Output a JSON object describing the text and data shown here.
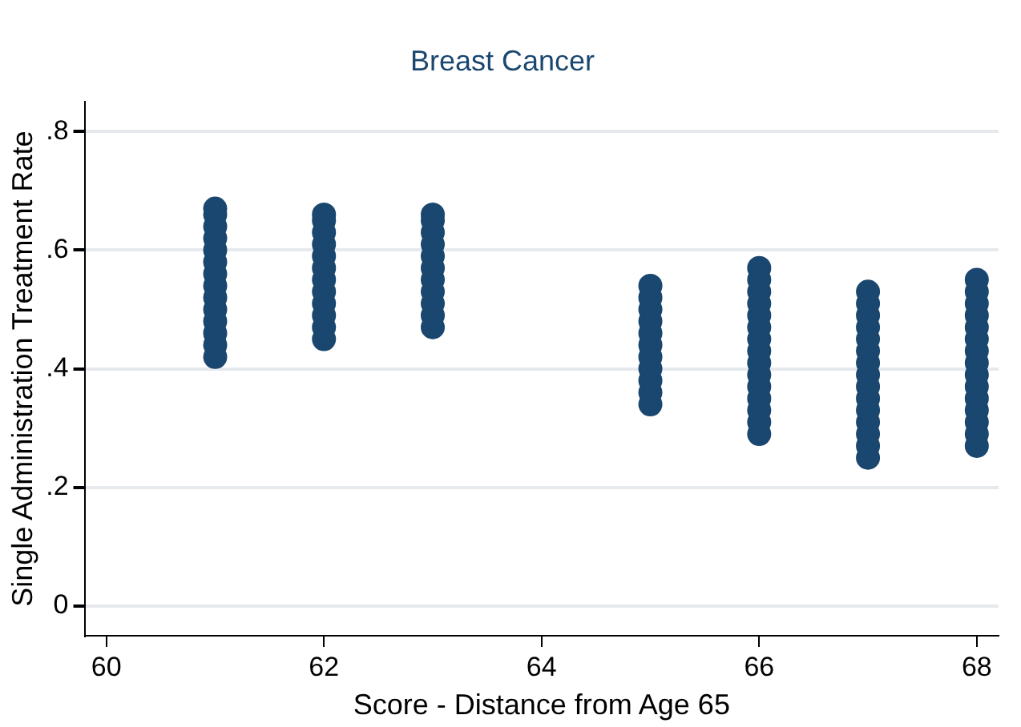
{
  "chart_data": {
    "type": "scatter",
    "title": "Breast Cancer",
    "xlabel": "Score - Distance from Age 65",
    "ylabel": "Single Administration Treatment Rate",
    "x": [
      61,
      61,
      61,
      61,
      61,
      61,
      61,
      61,
      61,
      61,
      61,
      61,
      61,
      61,
      62,
      62,
      62,
      62,
      62,
      62,
      62,
      62,
      62,
      62,
      62,
      62,
      63,
      63,
      63,
      63,
      63,
      63,
      63,
      63,
      63,
      63,
      63,
      65,
      65,
      65,
      65,
      65,
      65,
      65,
      65,
      65,
      65,
      65,
      66,
      66,
      66,
      66,
      66,
      66,
      66,
      66,
      66,
      66,
      66,
      66,
      66,
      66,
      66,
      67,
      67,
      67,
      67,
      67,
      67,
      67,
      67,
      67,
      67,
      67,
      67,
      67,
      67,
      67,
      68,
      68,
      68,
      68,
      68,
      68,
      68,
      68,
      68,
      68,
      68,
      68,
      68,
      68,
      68
    ],
    "values": [
      0.42,
      0.44,
      0.46,
      0.48,
      0.5,
      0.52,
      0.54,
      0.56,
      0.58,
      0.6,
      0.62,
      0.64,
      0.66,
      0.67,
      0.45,
      0.47,
      0.49,
      0.51,
      0.53,
      0.55,
      0.57,
      0.59,
      0.61,
      0.63,
      0.65,
      0.66,
      0.47,
      0.49,
      0.51,
      0.53,
      0.55,
      0.57,
      0.59,
      0.61,
      0.63,
      0.65,
      0.66,
      0.34,
      0.36,
      0.38,
      0.4,
      0.42,
      0.44,
      0.46,
      0.48,
      0.5,
      0.52,
      0.54,
      0.29,
      0.31,
      0.33,
      0.35,
      0.37,
      0.39,
      0.41,
      0.43,
      0.45,
      0.47,
      0.49,
      0.51,
      0.53,
      0.55,
      0.57,
      0.25,
      0.27,
      0.29,
      0.31,
      0.33,
      0.35,
      0.37,
      0.39,
      0.41,
      0.43,
      0.45,
      0.47,
      0.49,
      0.51,
      0.53,
      0.27,
      0.29,
      0.31,
      0.33,
      0.35,
      0.37,
      0.39,
      0.41,
      0.43,
      0.45,
      0.47,
      0.49,
      0.51,
      0.53,
      0.55
    ],
    "color": "#1a476f",
    "marker": "circle",
    "xlim": [
      59.8,
      68.2
    ],
    "xticks": [
      60,
      62,
      64,
      66,
      68
    ],
    "ylim": [
      -0.05,
      0.85
    ],
    "yticks": [
      0,
      {
        "value": 0.2,
        "label": ".2"
      },
      {
        "value": 0.4,
        "label": ".4"
      },
      {
        "value": 0.6,
        "label": ".6"
      },
      {
        "value": 0.8,
        "label": ".8"
      }
    ],
    "grid": "y"
  }
}
